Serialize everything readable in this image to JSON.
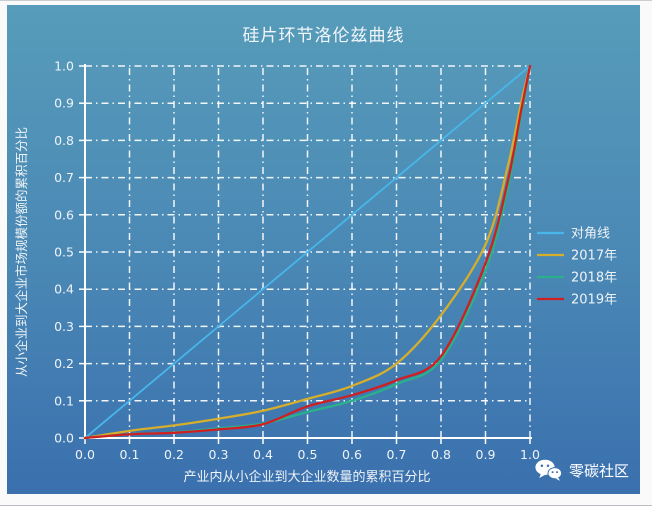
{
  "title": "硅片环节洛伦兹曲线",
  "watermark": {
    "label": "零碳社区",
    "icon": "wechat-icon"
  },
  "colors": {
    "background_top": "#579cba",
    "background_mid": "#4a88b5",
    "background_bottom": "#3a70ae",
    "frame": "#fafafa",
    "grid": "#ffffff",
    "text": "#eef3f7",
    "diagonal": "#47b6e9",
    "year_2017": "#d4ae2c",
    "year_2018": "#2ab18c",
    "year_2019": "#cf1f22"
  },
  "chart_data": {
    "type": "line",
    "title": "硅片环节洛伦兹曲线",
    "xlabel": "产业内从小企业到大企业数量的累积百分比",
    "ylabel": "从小企业到大企业市场规模份额的累积百分比",
    "xlim": [
      0,
      1
    ],
    "ylim": [
      0,
      1
    ],
    "xtick_labels": [
      "0.0",
      "0.1",
      "0.2",
      "0.3",
      "0.4",
      "0.5",
      "0.6",
      "0.7",
      "0.8",
      "0.9",
      "1.0"
    ],
    "ytick_labels": [
      "0.0",
      "0.1",
      "0.2",
      "0.3",
      "0.4",
      "0.5",
      "0.6",
      "0.7",
      "0.8",
      "0.9",
      "1.0"
    ],
    "grid": "white dash-dot, both axes, 0.1 spacing",
    "legend_position": "center-right",
    "series": [
      {
        "id": "diagonal",
        "name": "对角线",
        "color": "#47b6e9",
        "x": [
          0,
          1
        ],
        "y": [
          0,
          1
        ]
      },
      {
        "id": "year-2017",
        "name": "2017年",
        "color": "#d4ae2c",
        "x": [
          0,
          0.1,
          0.2,
          0.3,
          0.4,
          0.5,
          0.6,
          0.7,
          0.8,
          0.9,
          0.95,
          0.98,
          1.0
        ],
        "y": [
          0,
          0.019,
          0.034,
          0.052,
          0.073,
          0.105,
          0.14,
          0.2,
          0.33,
          0.52,
          0.73,
          0.9,
          1.0
        ]
      },
      {
        "id": "year-2018",
        "name": "2018年",
        "color": "#2ab18c",
        "x": [
          0,
          0.1,
          0.2,
          0.3,
          0.4,
          0.5,
          0.6,
          0.7,
          0.8,
          0.9,
          0.95,
          0.98,
          1.0
        ],
        "y": [
          0,
          0.01,
          0.015,
          0.026,
          0.039,
          0.07,
          0.1,
          0.145,
          0.21,
          0.45,
          0.67,
          0.87,
          1.0
        ]
      },
      {
        "id": "year-2019",
        "name": "2019年",
        "color": "#cf1f22",
        "x": [
          0,
          0.1,
          0.2,
          0.3,
          0.4,
          0.5,
          0.6,
          0.7,
          0.8,
          0.9,
          0.95,
          0.98,
          1.0
        ],
        "y": [
          0,
          0.01,
          0.014,
          0.023,
          0.037,
          0.085,
          0.115,
          0.155,
          0.22,
          0.47,
          0.69,
          0.88,
          1.0
        ]
      }
    ]
  }
}
